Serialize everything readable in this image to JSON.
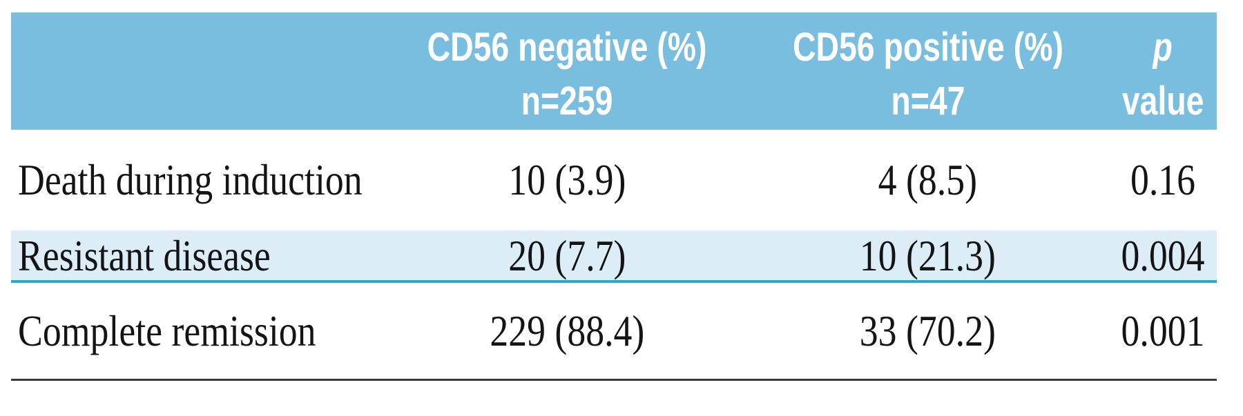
{
  "table": {
    "columns": [
      {
        "header_line1": "",
        "header_line2": ""
      },
      {
        "header_line1": "CD56 negative (%)",
        "header_line2": "n=259"
      },
      {
        "header_line1": "CD56 positive (%)",
        "header_line2": "n=47"
      },
      {
        "header_line1": "p",
        "header_line2": "value"
      }
    ],
    "rows": [
      {
        "label": "Death during induction",
        "cd56_negative": "10 (3.9)",
        "cd56_positive": "4 (8.5)",
        "p_value": "0.16",
        "highlighted": false
      },
      {
        "label": "Resistant disease",
        "cd56_negative": "20 (7.7)",
        "cd56_positive": "10 (21.3)",
        "p_value": "0.004",
        "highlighted": true
      },
      {
        "label": "Complete remission",
        "cd56_negative": "229 (88.4)",
        "cd56_positive": "33 (70.2)",
        "p_value": "0.001",
        "highlighted": false
      }
    ]
  },
  "colors": {
    "header_bg": "#79bedf",
    "highlight_row_bg": "#dcedf8",
    "highlight_row_border": "#2aa8d4",
    "bottom_rule": "#3a3a3a",
    "header_text": "#ffffff",
    "body_text": "#141414"
  },
  "chart_data": {
    "type": "table",
    "title": "",
    "column_headers": [
      "",
      "CD56 negative (%) n=259",
      "CD56 positive (%) n=47",
      "p value"
    ],
    "rows": [
      [
        "Death during induction",
        "10 (3.9)",
        "4 (8.5)",
        "0.16"
      ],
      [
        "Resistant disease",
        "20 (7.7)",
        "10 (21.3)",
        "0.004"
      ],
      [
        "Complete remission",
        "229 (88.4)",
        "33 (70.2)",
        "0.001"
      ]
    ]
  }
}
